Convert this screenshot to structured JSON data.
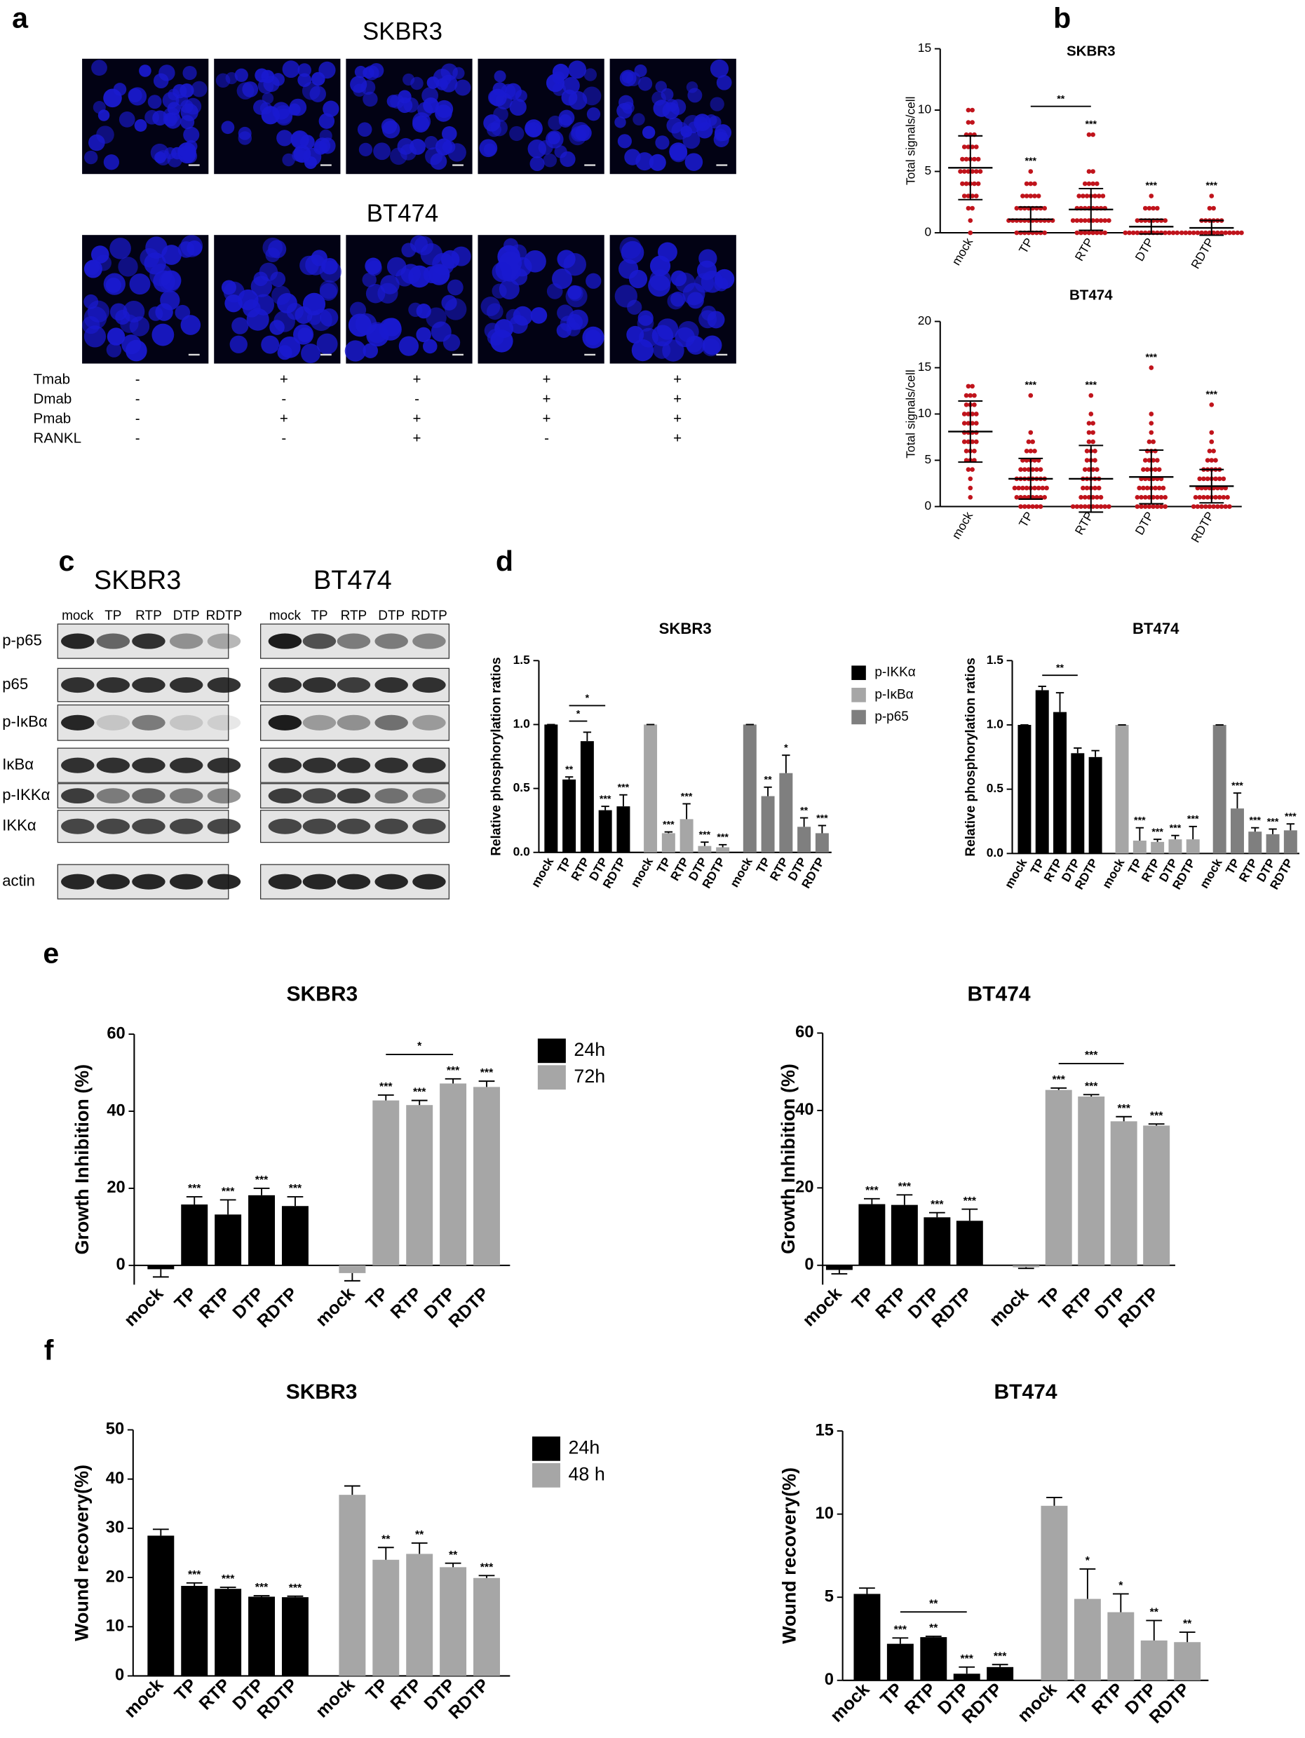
{
  "panel_labels": [
    "a",
    "b",
    "c",
    "d",
    "e",
    "f"
  ],
  "panel_a": {
    "titles": [
      "SKBR3",
      "BT474"
    ],
    "treatments": [
      {
        "name": "Tmab",
        "signs": [
          "-",
          "+",
          "+",
          "+",
          "+"
        ]
      },
      {
        "name": "Dmab",
        "signs": [
          "-",
          "-",
          "-",
          "+",
          "+"
        ]
      },
      {
        "name": "Pmab",
        "signs": [
          "-",
          "+",
          "+",
          "+",
          "+"
        ]
      },
      {
        "name": "RANKL",
        "signs": [
          "-",
          "-",
          "+",
          "-",
          "+"
        ]
      }
    ]
  },
  "panel_c": {
    "titles": [
      "SKBR3",
      "BT474"
    ],
    "lanes": [
      "mock",
      "TP",
      "RTP",
      "DTP",
      "RDTP"
    ],
    "rows": [
      "p-p65",
      "p65",
      "p-IκBα",
      "IκBα",
      "p-IKKα",
      "IKKα",
      "actin"
    ]
  },
  "chart_data": [
    {
      "type": "dot",
      "title": "SKBR3",
      "ylabel": "Total signals/cell",
      "color": "#c0141c",
      "categories": [
        "mock",
        "TP",
        "RTP",
        "DTP",
        "RDTP"
      ],
      "points": [
        [
          0,
          1,
          2,
          2,
          3,
          3,
          3,
          3,
          4,
          4,
          4,
          4,
          4,
          5,
          5,
          5,
          5,
          5,
          5,
          6,
          6,
          6,
          6,
          6,
          7,
          7,
          7,
          7,
          8,
          8,
          8,
          9,
          9,
          10,
          10
        ],
        [
          0,
          0,
          0,
          0,
          0,
          0,
          0,
          0,
          1,
          1,
          1,
          1,
          1,
          1,
          1,
          1,
          1,
          1,
          1,
          1,
          2,
          2,
          2,
          2,
          2,
          2,
          2,
          2,
          3,
          3,
          3,
          3,
          3,
          4,
          4,
          4,
          5
        ],
        [
          0,
          0,
          0,
          0,
          0,
          0,
          0,
          0,
          1,
          1,
          1,
          1,
          1,
          1,
          1,
          1,
          1,
          1,
          2,
          2,
          2,
          2,
          2,
          2,
          2,
          2,
          3,
          3,
          3,
          3,
          3,
          3,
          3,
          4,
          4,
          4,
          4,
          5,
          5,
          8,
          8
        ],
        [
          0,
          0,
          0,
          0,
          0,
          0,
          0,
          0,
          0,
          0,
          0,
          0,
          0,
          0,
          1,
          1,
          1,
          1,
          1,
          1,
          1,
          1,
          2,
          2,
          2,
          2,
          3
        ],
        [
          0,
          0,
          0,
          0,
          0,
          0,
          0,
          0,
          0,
          0,
          0,
          0,
          0,
          0,
          0,
          0,
          1,
          1,
          1,
          1,
          1,
          1,
          2,
          2,
          3
        ]
      ],
      "mean": [
        5.3,
        1.1,
        1.9,
        0.5,
        0.4
      ],
      "sd": [
        2.6,
        1.0,
        1.7,
        0.6,
        0.6
      ],
      "significance": [
        null,
        "***",
        "***",
        "***",
        "***"
      ],
      "comparisons": [
        {
          "from": 1,
          "to": 2,
          "label": "**"
        }
      ],
      "ylim": [
        0,
        15
      ],
      "yticks": [
        0,
        5,
        10,
        15
      ]
    },
    {
      "type": "dot",
      "title": "BT474",
      "ylabel": "Total signals/cell",
      "color": "#c0141c",
      "categories": [
        "mock",
        "TP",
        "RTP",
        "DTP",
        "RDTP"
      ],
      "points": [
        [
          1,
          2,
          3,
          4,
          4,
          5,
          5,
          5,
          6,
          6,
          6,
          7,
          7,
          7,
          7,
          8,
          8,
          8,
          8,
          9,
          9,
          9,
          9,
          10,
          10,
          10,
          10,
          11,
          11,
          11,
          12,
          12,
          12,
          13,
          13
        ],
        [
          0,
          0,
          0,
          0,
          0,
          0,
          1,
          1,
          1,
          1,
          1,
          1,
          1,
          1,
          2,
          2,
          2,
          2,
          2,
          2,
          2,
          2,
          2,
          3,
          3,
          3,
          3,
          3,
          3,
          3,
          3,
          4,
          4,
          4,
          4,
          4,
          4,
          5,
          5,
          5,
          5,
          5,
          6,
          6,
          6,
          7,
          7,
          8,
          12
        ],
        [
          0,
          0,
          0,
          0,
          0,
          0,
          0,
          0,
          0,
          0,
          1,
          1,
          1,
          1,
          1,
          1,
          2,
          2,
          2,
          2,
          2,
          3,
          3,
          3,
          3,
          3,
          4,
          4,
          4,
          4,
          5,
          5,
          5,
          6,
          6,
          6,
          7,
          7,
          8,
          8,
          9,
          9,
          10,
          12
        ],
        [
          0,
          0,
          0,
          0,
          0,
          0,
          0,
          0,
          1,
          1,
          1,
          1,
          1,
          1,
          1,
          1,
          2,
          2,
          2,
          2,
          2,
          2,
          2,
          3,
          3,
          3,
          3,
          3,
          3,
          4,
          4,
          4,
          4,
          4,
          5,
          5,
          5,
          5,
          6,
          6,
          6,
          7,
          7,
          8,
          9,
          10,
          15
        ],
        [
          0,
          0,
          0,
          0,
          0,
          0,
          0,
          0,
          0,
          0,
          1,
          1,
          1,
          1,
          1,
          1,
          1,
          1,
          1,
          2,
          2,
          2,
          2,
          2,
          2,
          2,
          2,
          3,
          3,
          3,
          3,
          3,
          3,
          3,
          4,
          4,
          4,
          4,
          4,
          5,
          5,
          5,
          6,
          6,
          7,
          8,
          11
        ]
      ],
      "mean": [
        8.1,
        3.0,
        3.0,
        3.2,
        2.2
      ],
      "sd": [
        3.3,
        2.2,
        3.6,
        2.9,
        1.8
      ],
      "significance": [
        null,
        "***",
        "***",
        "***",
        "***"
      ],
      "ylim": [
        0,
        20
      ],
      "yticks": [
        0,
        5,
        10,
        15,
        20
      ]
    },
    {
      "type": "bar",
      "title": "SKBR3",
      "ylabel": "Relative phosphorylation ratios",
      "legend": "right",
      "categories": [
        "mock",
        "TP",
        "RTP",
        "DTP",
        "RDTP"
      ],
      "series": [
        {
          "name": "p-IKKα",
          "color": "#000000",
          "values": [
            1.0,
            0.57,
            0.87,
            0.33,
            0.36
          ],
          "errors": [
            0,
            0.02,
            0.07,
            0.03,
            0.09
          ],
          "significance": [
            null,
            "**",
            null,
            "***",
            "***"
          ]
        },
        {
          "name": "p-IκBα",
          "color": "#a6a6a6",
          "values": [
            1.0,
            0.15,
            0.26,
            0.05,
            0.04
          ],
          "errors": [
            0,
            0.01,
            0.12,
            0.03,
            0.02
          ],
          "significance": [
            null,
            "***",
            "***",
            "***",
            "***"
          ]
        },
        {
          "name": "p-p65",
          "color": "#7f7f7f",
          "values": [
            1.0,
            0.44,
            0.62,
            0.2,
            0.15
          ],
          "errors": [
            0,
            0.07,
            0.14,
            0.07,
            0.06
          ],
          "significance": [
            null,
            "**",
            "*",
            "**",
            "***"
          ]
        }
      ],
      "comparisons": [
        {
          "series": 0,
          "from": 1,
          "to": 2,
          "label": "*"
        },
        {
          "series": 0,
          "from": 1,
          "to": 3,
          "label": "*"
        }
      ],
      "ylim": [
        0,
        1.5
      ],
      "yticks": [
        {
          "value": 0,
          "label": "0.0"
        },
        0.5,
        {
          "value": 1,
          "label": "1.0"
        },
        1.5
      ]
    },
    {
      "type": "bar",
      "title": "BT474",
      "ylabel": "Relative phosphorylation ratios",
      "categories": [
        "mock",
        "TP",
        "RTP",
        "DTP",
        "RDTP"
      ],
      "series": [
        {
          "color": "#000000",
          "values": [
            1.0,
            1.27,
            1.1,
            0.78,
            0.75
          ],
          "errors": [
            0,
            0.03,
            0.15,
            0.04,
            0.05
          ]
        },
        {
          "color": "#a6a6a6",
          "values": [
            1.0,
            0.1,
            0.09,
            0.11,
            0.11
          ],
          "errors": [
            0,
            0.1,
            0.02,
            0.03,
            0.1
          ],
          "significance": [
            null,
            "***",
            "***",
            "***",
            "***"
          ]
        },
        {
          "color": "#7f7f7f",
          "values": [
            1.0,
            0.35,
            0.17,
            0.15,
            0.18
          ],
          "errors": [
            0,
            0.12,
            0.03,
            0.04,
            0.05
          ],
          "significance": [
            null,
            "***",
            "***",
            "***",
            "***"
          ]
        }
      ],
      "comparisons": [
        {
          "series": 0,
          "from": 1,
          "to": 3,
          "label": "**"
        }
      ],
      "ylim": [
        0,
        1.5
      ],
      "yticks": [
        {
          "value": 0,
          "label": "0.0"
        },
        0.5,
        {
          "value": 1,
          "label": "1.0"
        },
        1.5
      ]
    },
    {
      "type": "bar",
      "title": "SKBR3",
      "ylabel": "Growth Inhibition (%)",
      "legend": "right",
      "categories": [
        "mock",
        "TP",
        "RTP",
        "DTP",
        "RDTP"
      ],
      "series": [
        {
          "name": "24h",
          "color": "#000000",
          "values": [
            -1.0,
            15.8,
            13.2,
            18.2,
            15.4
          ],
          "errors": [
            2.0,
            2.0,
            3.8,
            1.8,
            2.4
          ],
          "significance": [
            null,
            "***",
            "***",
            "***",
            "***"
          ]
        },
        {
          "name": "72h",
          "color": "#a6a6a6",
          "values": [
            -2.0,
            42.8,
            41.6,
            47.2,
            46.3
          ],
          "errors": [
            2.0,
            1.4,
            1.2,
            1.2,
            1.5
          ],
          "significance": [
            null,
            "***",
            "***",
            "***",
            "***"
          ]
        }
      ],
      "comparisons": [
        {
          "series": 1,
          "from": 1,
          "to": 3,
          "label": "*"
        }
      ],
      "ylim": [
        -5,
        60
      ],
      "yticks": [
        0,
        20,
        40,
        60
      ]
    },
    {
      "type": "bar",
      "title": "BT474",
      "ylabel": "Growth Inhibition (%)",
      "categories": [
        "mock",
        "TP",
        "RTP",
        "DTP",
        "RDTP"
      ],
      "series": [
        {
          "color": "#000000",
          "values": [
            -1.2,
            15.8,
            15.6,
            12.4,
            11.5
          ],
          "errors": [
            1.0,
            1.4,
            2.6,
            1.2,
            3.0
          ],
          "significance": [
            null,
            "***",
            "***",
            "***",
            "***"
          ]
        },
        {
          "color": "#a6a6a6",
          "values": [
            -0.5,
            45.3,
            43.6,
            37.2,
            36.1
          ],
          "errors": [
            0.3,
            0.5,
            0.5,
            1.2,
            0.4
          ],
          "significance": [
            null,
            "***",
            "***",
            "***",
            "***"
          ]
        }
      ],
      "comparisons": [
        {
          "series": 1,
          "from": 1,
          "to": 3,
          "label": "***"
        }
      ],
      "ylim": [
        -5,
        60
      ],
      "yticks": [
        0,
        20,
        40,
        60
      ]
    },
    {
      "type": "bar",
      "title": "SKBR3",
      "ylabel": "Wound recovery(%)",
      "legend": "right",
      "categories": [
        "mock",
        "TP",
        "RTP",
        "DTP",
        "RDTP"
      ],
      "series": [
        {
          "name": "24h",
          "color": "#000000",
          "values": [
            28.5,
            18.3,
            17.7,
            16.1,
            16.0
          ],
          "errors": [
            1.3,
            0.6,
            0.3,
            0.2,
            0.2
          ],
          "significance": [
            null,
            "***",
            "***",
            "***",
            "***"
          ]
        },
        {
          "name": "48 h",
          "color": "#a6a6a6",
          "values": [
            36.8,
            23.6,
            24.8,
            22.1,
            19.9
          ],
          "errors": [
            1.8,
            2.5,
            2.2,
            0.8,
            0.5
          ],
          "significance": [
            null,
            "**",
            "**",
            "**",
            "***"
          ]
        }
      ],
      "ylim": [
        0,
        50
      ],
      "yticks": [
        0,
        10,
        20,
        30,
        40,
        50
      ]
    },
    {
      "type": "bar",
      "title": "BT474",
      "ylabel": "Wound recovery(%)",
      "categories": [
        "mock",
        "TP",
        "RTP",
        "DTP",
        "RDTP"
      ],
      "series": [
        {
          "color": "#000000",
          "values": [
            5.2,
            2.2,
            2.6,
            0.4,
            0.8
          ],
          "errors": [
            0.35,
            0.35,
            0.05,
            0.4,
            0.15
          ],
          "significance": [
            null,
            "***",
            "**",
            "***",
            "***"
          ]
        },
        {
          "color": "#a6a6a6",
          "values": [
            10.5,
            4.9,
            4.1,
            2.4,
            2.3
          ],
          "errors": [
            0.5,
            1.8,
            1.1,
            1.2,
            0.6
          ],
          "significance": [
            null,
            "*",
            "*",
            "**",
            "**"
          ]
        }
      ],
      "comparisons": [
        {
          "series": 0,
          "from": 1,
          "to": 3,
          "label": "**"
        }
      ],
      "ylim": [
        0,
        15
      ],
      "yticks": [
        0,
        5,
        10,
        15
      ]
    }
  ]
}
